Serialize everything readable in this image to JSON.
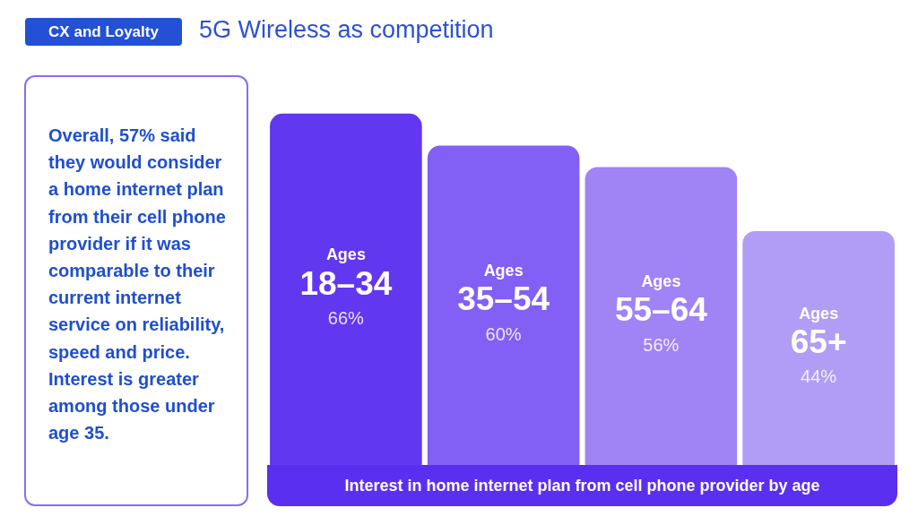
{
  "chart_data": {
    "type": "bar",
    "title": "5G Wireless as competition",
    "annotations": [
      "CX and Loyalty",
      "Overall, 57% said they would consider a home internet plan from their cell phone provider if it was comparable to their current internet service on reliability, speed and price. Interest is greater among those under age 35."
    ],
    "xlabel": "Interest in home internet plan from cell phone provider by age",
    "categories": [
      "Ages 18–34",
      "Ages 35–54",
      "Ages 55–64",
      "Ages 65+"
    ],
    "values": [
      66,
      60,
      56,
      44
    ],
    "colors": [
      "#6237f0",
      "#825ff5",
      "#a083f5",
      "#b19cf6"
    ],
    "value_labels": [
      "66%",
      "60%",
      "56%",
      "44%"
    ],
    "legend": false
  }
}
